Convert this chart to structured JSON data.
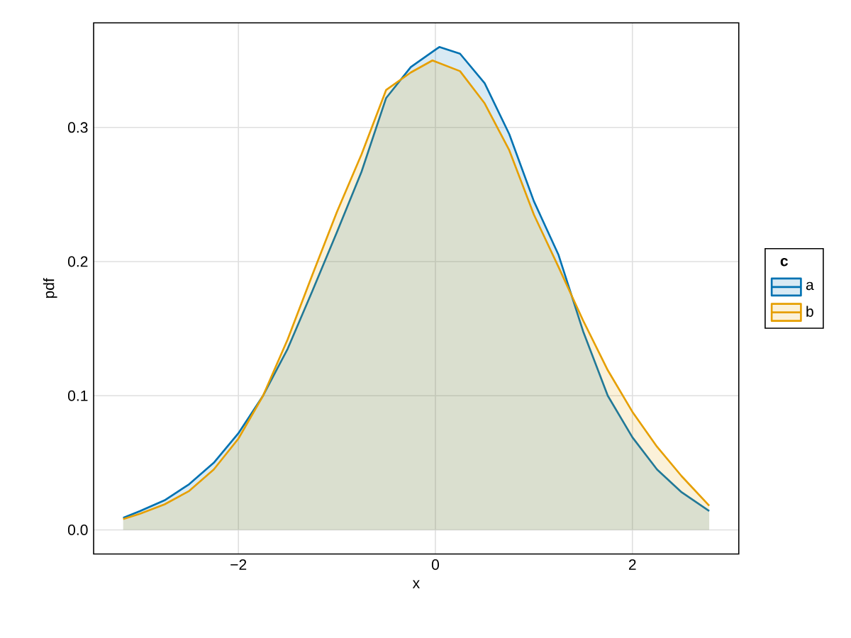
{
  "chart_data": {
    "type": "area",
    "xlabel": "x",
    "ylabel": "pdf",
    "legend_title": "c",
    "legend": "right",
    "grid": true,
    "xlim": [
      -3.47,
      3.08
    ],
    "ylim": [
      -0.018,
      0.378
    ],
    "xticks": [
      {
        "value": -2,
        "label": "−2"
      },
      0,
      2
    ],
    "yticks": [
      {
        "value": 0,
        "label": "0.0"
      },
      0.1,
      0.2,
      0.3
    ],
    "series": [
      {
        "name": "a",
        "color": "#0072b2",
        "x": [
          -3.17,
          -3,
          -2.75,
          -2.5,
          -2.25,
          -2,
          -1.75,
          -1.5,
          -1.25,
          -1,
          -0.75,
          -0.5,
          -0.25,
          0,
          0.04,
          0.25,
          0.5,
          0.75,
          1,
          1.25,
          1.5,
          1.75,
          2,
          2.25,
          2.5,
          2.78
        ],
        "values": [
          0.009,
          0.014,
          0.022,
          0.034,
          0.05,
          0.072,
          0.1,
          0.135,
          0.178,
          0.222,
          0.267,
          0.322,
          0.345,
          0.358,
          0.36,
          0.355,
          0.333,
          0.295,
          0.245,
          0.205,
          0.148,
          0.1,
          0.069,
          0.045,
          0.028,
          0.014
        ]
      },
      {
        "name": "b",
        "color": "#e69f00",
        "x": [
          -3.17,
          -3,
          -2.75,
          -2.5,
          -2.25,
          -2,
          -1.75,
          -1.5,
          -1.25,
          -1,
          -0.75,
          -0.5,
          -0.25,
          -0.03,
          0.25,
          0.5,
          0.75,
          1,
          1.25,
          1.5,
          1.75,
          2,
          2.25,
          2.5,
          2.78
        ],
        "values": [
          0.008,
          0.012,
          0.019,
          0.029,
          0.045,
          0.068,
          0.1,
          0.142,
          0.19,
          0.237,
          0.28,
          0.328,
          0.341,
          0.35,
          0.342,
          0.318,
          0.283,
          0.235,
          0.196,
          0.156,
          0.119,
          0.088,
          0.062,
          0.04,
          0.018
        ]
      }
    ]
  }
}
